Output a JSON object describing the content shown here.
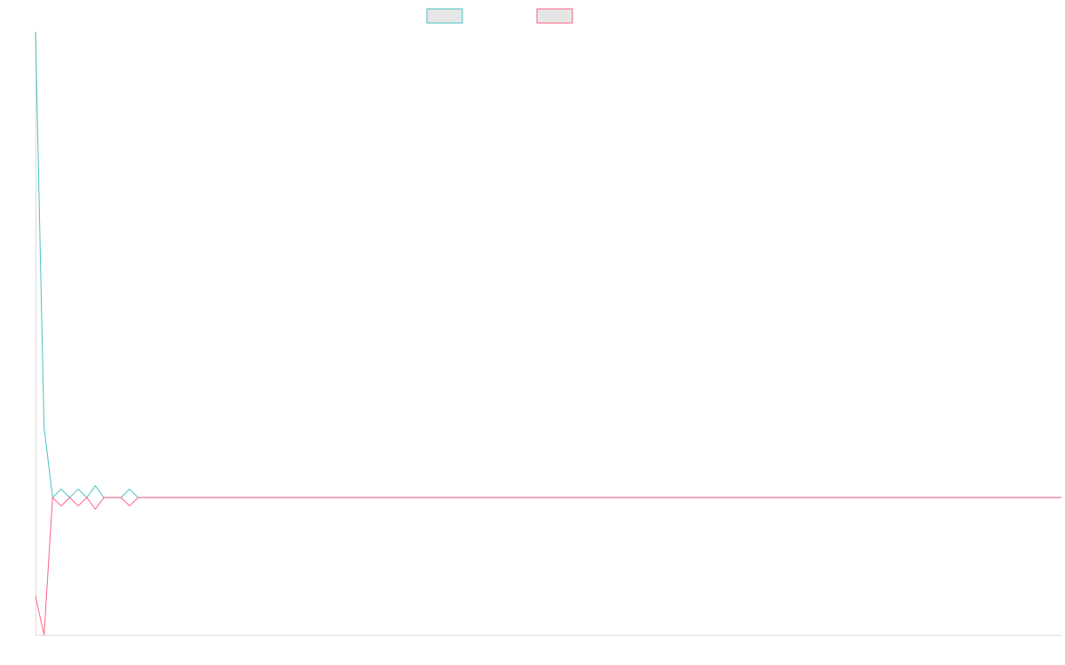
{
  "chart_data": {
    "type": "line",
    "title": "",
    "xlabel": "",
    "ylabel": "",
    "grid": false,
    "legend": {
      "placement": "top-center",
      "entries": [
        {
          "label": "",
          "color": "#4bc0c0"
        },
        {
          "label": "",
          "color": "#ff6384"
        }
      ]
    },
    "x": [
      0,
      1,
      2,
      3,
      4,
      5,
      6,
      7,
      8,
      9,
      10,
      11,
      12,
      13,
      14,
      15,
      16,
      17,
      18,
      19,
      20,
      21,
      22,
      23,
      24,
      25,
      26,
      27,
      28,
      29,
      30,
      31,
      32,
      33,
      34,
      35,
      36,
      37,
      38,
      39,
      40,
      41,
      42,
      43,
      44,
      45,
      46,
      47,
      48,
      49,
      50,
      51,
      52,
      53,
      54,
      55,
      56,
      57,
      58,
      59,
      60,
      61,
      62,
      63,
      64,
      65,
      66,
      67,
      68,
      69,
      70,
      71,
      72,
      73,
      74,
      75,
      76,
      77,
      78,
      79,
      80,
      81,
      82,
      83,
      84,
      85,
      86,
      87,
      88,
      89,
      90,
      91,
      92,
      93,
      94,
      95,
      96,
      97,
      98,
      99,
      100,
      101,
      102,
      103,
      104,
      105,
      106,
      107,
      108,
      109,
      110,
      111,
      112,
      113,
      114,
      115,
      116,
      117,
      118,
      119,
      120
    ],
    "ylim": [
      -4.1,
      13.9
    ],
    "series": [
      {
        "color": "#4bc0c0",
        "values": [
          13.9,
          2.1,
          0,
          0.25,
          0,
          0.25,
          0,
          0.35,
          0,
          0,
          0,
          0.25,
          0,
          0,
          0,
          0,
          0,
          0,
          0,
          0,
          0,
          0,
          0,
          0,
          0,
          0,
          0,
          0,
          0,
          0,
          0,
          0,
          0,
          0,
          0,
          0,
          0,
          0,
          0,
          0,
          0,
          0,
          0,
          0,
          0,
          0,
          0,
          0,
          0,
          0,
          0,
          0,
          0,
          0,
          0,
          0,
          0,
          0,
          0,
          0,
          0,
          0,
          0,
          0,
          0,
          0,
          0,
          0,
          0,
          0,
          0,
          0,
          0,
          0,
          0,
          0,
          0,
          0,
          0,
          0,
          0,
          0,
          0,
          0,
          0,
          0,
          0,
          0,
          0,
          0,
          0,
          0,
          0,
          0,
          0,
          0,
          0,
          0,
          0,
          0,
          0,
          0,
          0,
          0,
          0,
          0,
          0,
          0,
          0,
          0,
          0,
          0,
          0,
          0,
          0,
          0,
          0,
          0,
          0,
          0,
          0
        ]
      },
      {
        "color": "#ff6384",
        "values": [
          -2.95,
          -4.1,
          0,
          -0.25,
          0,
          -0.25,
          0,
          -0.35,
          0,
          0,
          0,
          -0.25,
          0,
          0,
          0,
          0,
          0,
          0,
          0,
          0,
          0,
          0,
          0,
          0,
          0,
          0,
          0,
          0,
          0,
          0,
          0,
          0,
          0,
          0,
          0,
          0,
          0,
          0,
          0,
          0,
          0,
          0,
          0,
          0,
          0,
          0,
          0,
          0,
          0,
          0,
          0,
          0,
          0,
          0,
          0,
          0,
          0,
          0,
          0,
          0,
          0,
          0,
          0,
          0,
          0,
          0,
          0,
          0,
          0,
          0,
          0,
          0,
          0,
          0,
          0,
          0,
          0,
          0,
          0,
          0,
          0,
          0,
          0,
          0,
          0,
          0,
          0,
          0,
          0,
          0,
          0,
          0,
          0,
          0,
          0,
          0,
          0,
          0,
          0,
          0,
          0,
          0,
          0,
          0,
          0,
          0,
          0,
          0,
          0,
          0,
          0,
          0,
          0,
          0,
          0,
          0,
          0,
          0,
          0,
          0,
          0
        ]
      }
    ]
  }
}
